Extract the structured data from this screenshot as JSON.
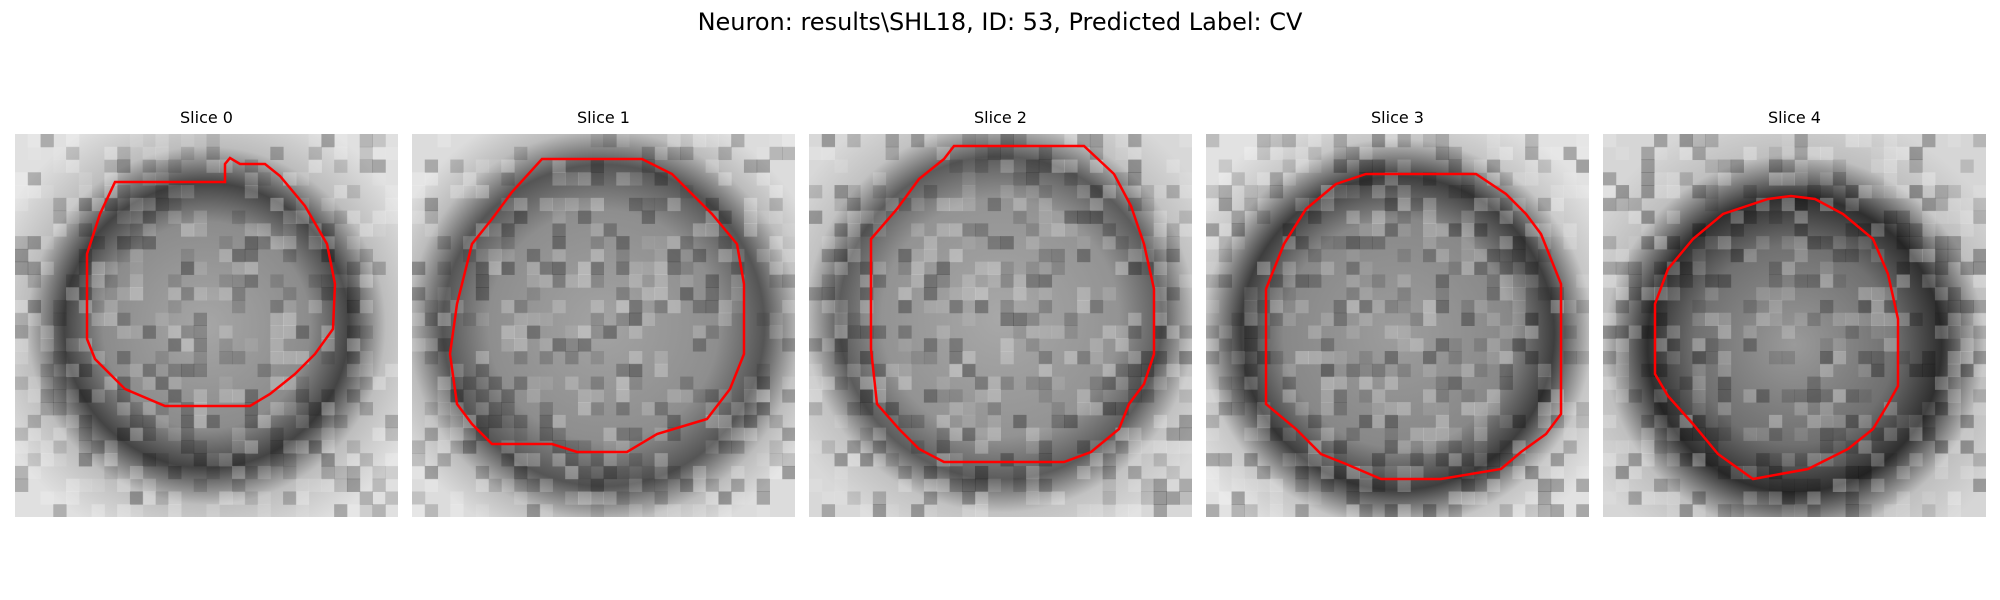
{
  "figure": {
    "title": "Neuron: results\\SHL18, ID: 53, Predicted Label: CV"
  },
  "panels": [
    {
      "title": "Slice 0"
    },
    {
      "title": "Slice 1"
    },
    {
      "title": "Slice 2"
    },
    {
      "title": "Slice 3"
    },
    {
      "title": "Slice 4"
    }
  ],
  "colors": {
    "contour": "#ff0000",
    "background": "#ffffff"
  }
}
